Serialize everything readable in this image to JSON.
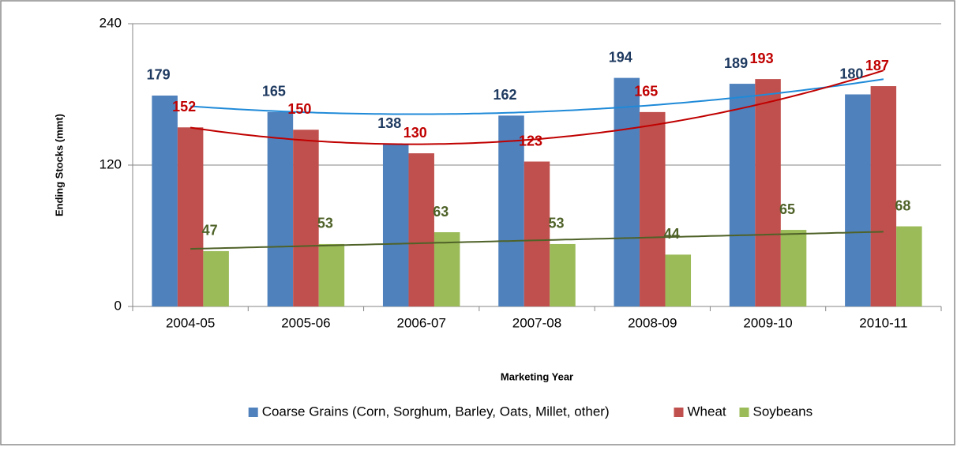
{
  "chart_data": {
    "type": "bar",
    "xlabel": "Marketing Year",
    "ylabel": "Ending Stocks (mmt)",
    "categories": [
      "2004-05",
      "2005-06",
      "2006-07",
      "2007-08",
      "2008-09",
      "2009-10",
      "2010-11"
    ],
    "series": [
      {
        "name": "Coarse Grains (Corn, Sorghum, Barley, Oats, Millet, other)",
        "color": "#4f81bd",
        "label_color": "#1f3a60",
        "trend_color": "#1f8ad8",
        "trend_order": 2,
        "values": [
          179,
          165,
          138,
          162,
          194,
          189,
          180
        ]
      },
      {
        "name": "Wheat",
        "color": "#c0504d",
        "label_color": "#c00000",
        "trend_color": "#c00000",
        "trend_order": 2,
        "values": [
          152,
          150,
          130,
          123,
          165,
          193,
          187
        ]
      },
      {
        "name": "Soybeans",
        "color": "#9bbb59",
        "label_color": "#4f6228",
        "trend_color": "#4f6228",
        "trend_order": 1,
        "values": [
          47,
          53,
          63,
          53,
          44,
          65,
          68
        ]
      }
    ],
    "ylim": [
      0,
      240
    ],
    "yticks": [
      0,
      120,
      240
    ],
    "grid": true,
    "legend": "bottom"
  }
}
